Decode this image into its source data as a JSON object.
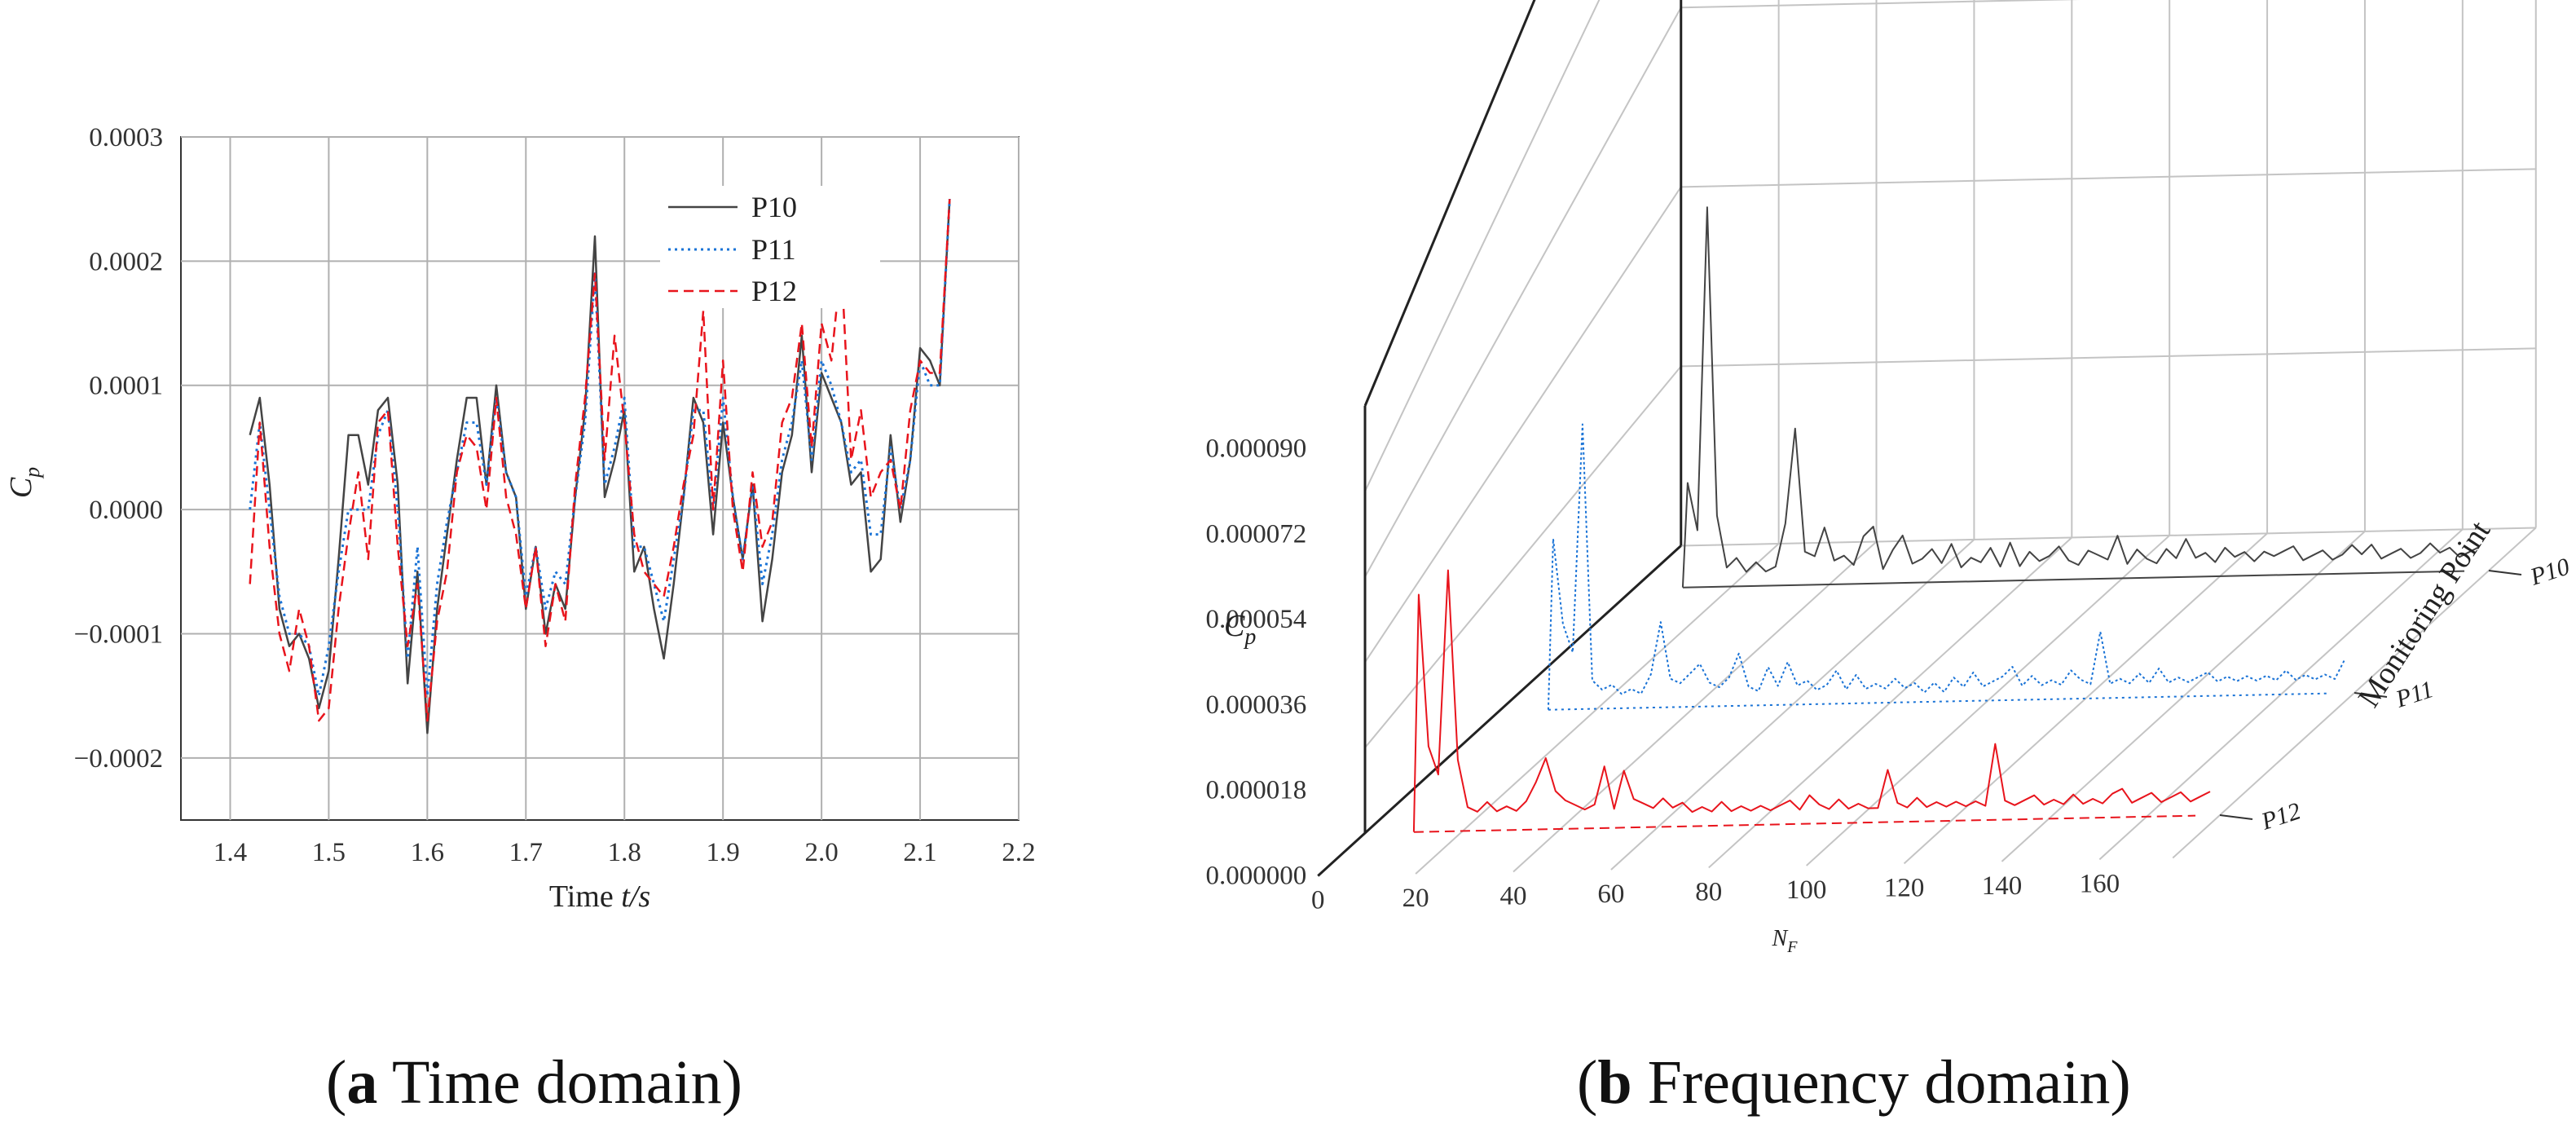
{
  "captions": {
    "a_letter": "a",
    "a_text": " Time domain",
    "b_letter": "b",
    "b_text": " Frequency domain"
  },
  "colors": {
    "P10": "#444444",
    "P11": "#1a73d6",
    "P12": "#e8141c"
  },
  "chart_data": [
    {
      "type": "line",
      "xlabel_prefix": "Time ",
      "xlabel_var": "t/s",
      "ylabel_main": "C",
      "ylabel_sub": "p",
      "xlim": [
        1.35,
        2.2
      ],
      "ylim": [
        -0.00025,
        0.0003
      ],
      "x_ticks": [
        "1.4",
        "1.5",
        "1.6",
        "1.7",
        "1.8",
        "1.9",
        "2.0",
        "2.1",
        "2.2"
      ],
      "x_tick_values": [
        1.4,
        1.5,
        1.6,
        1.7,
        1.8,
        1.9,
        2.0,
        2.1,
        2.2
      ],
      "y_ticks": [
        "0.0003",
        "0.0002",
        "0.0001",
        "0.0000",
        "−0.0001",
        "−0.0002"
      ],
      "y_tick_values": [
        0.0003,
        0.0002,
        0.0001,
        0.0,
        -0.0001,
        -0.0002
      ],
      "grid": true,
      "legend_position": "top-right",
      "series": [
        {
          "name": "P10",
          "style": "solid",
          "x": [
            1.42,
            1.43,
            1.44,
            1.45,
            1.46,
            1.47,
            1.48,
            1.49,
            1.5,
            1.51,
            1.52,
            1.53,
            1.54,
            1.55,
            1.56,
            1.57,
            1.58,
            1.59,
            1.6,
            1.61,
            1.62,
            1.63,
            1.64,
            1.65,
            1.66,
            1.67,
            1.68,
            1.69,
            1.7,
            1.71,
            1.72,
            1.73,
            1.74,
            1.75,
            1.76,
            1.77,
            1.78,
            1.79,
            1.8,
            1.81,
            1.82,
            1.83,
            1.84,
            1.85,
            1.86,
            1.87,
            1.88,
            1.89,
            1.9,
            1.91,
            1.92,
            1.93,
            1.94,
            1.95,
            1.96,
            1.97,
            1.98,
            1.99,
            2.0,
            2.01,
            2.02,
            2.03,
            2.04,
            2.05,
            2.06,
            2.07,
            2.08,
            2.09,
            2.1,
            2.11,
            2.12,
            2.13
          ],
          "y": [
            6e-05,
            9e-05,
            2e-05,
            -8e-05,
            -0.00011,
            -0.0001,
            -0.00012,
            -0.00016,
            -0.00013,
            -4e-05,
            6e-05,
            6e-05,
            2e-05,
            8e-05,
            9e-05,
            2e-05,
            -0.00014,
            -5e-05,
            -0.00018,
            -8e-05,
            -2e-05,
            4e-05,
            9e-05,
            9e-05,
            2e-05,
            0.0001,
            3e-05,
            1e-05,
            -8e-05,
            -3e-05,
            -0.0001,
            -6e-05,
            -8e-05,
            1e-05,
            8e-05,
            0.00022,
            1e-05,
            4e-05,
            8e-05,
            -5e-05,
            -3e-05,
            -8e-05,
            -0.00012,
            -6e-05,
            1e-05,
            9e-05,
            7e-05,
            -2e-05,
            7e-05,
            1e-05,
            -4e-05,
            2e-05,
            -9e-05,
            -4e-05,
            3e-05,
            6e-05,
            0.00014,
            3e-05,
            0.00011,
            9e-05,
            7e-05,
            2e-05,
            3e-05,
            -5e-05,
            -4e-05,
            6e-05,
            -1e-05,
            4e-05,
            0.00013,
            0.00012,
            0.0001,
            0.00025
          ]
        },
        {
          "name": "P11",
          "style": "dotted",
          "x": [
            1.42,
            1.43,
            1.44,
            1.45,
            1.46,
            1.47,
            1.48,
            1.49,
            1.5,
            1.51,
            1.52,
            1.53,
            1.54,
            1.55,
            1.56,
            1.57,
            1.58,
            1.59,
            1.6,
            1.61,
            1.62,
            1.63,
            1.64,
            1.65,
            1.66,
            1.67,
            1.68,
            1.69,
            1.7,
            1.71,
            1.72,
            1.73,
            1.74,
            1.75,
            1.76,
            1.77,
            1.78,
            1.79,
            1.8,
            1.81,
            1.82,
            1.83,
            1.84,
            1.85,
            1.86,
            1.87,
            1.88,
            1.89,
            1.9,
            1.91,
            1.92,
            1.93,
            1.94,
            1.95,
            1.96,
            1.97,
            1.98,
            1.99,
            2.0,
            2.01,
            2.02,
            2.03,
            2.04,
            2.05,
            2.06,
            2.07,
            2.08,
            2.09,
            2.1,
            2.11,
            2.12,
            2.13
          ],
          "y": [
            0.0,
            7e-05,
            0.0,
            -7e-05,
            -0.0001,
            -0.0001,
            -0.00011,
            -0.00015,
            -0.00011,
            -5e-05,
            0.0,
            0.0,
            0.0,
            6e-05,
            8e-05,
            0.0,
            -0.00012,
            -3e-05,
            -0.00015,
            -6e-05,
            -1e-05,
            3e-05,
            7e-05,
            7e-05,
            2e-05,
            9e-05,
            3e-05,
            1e-05,
            -7e-05,
            -3e-05,
            -8e-05,
            -5e-05,
            -6e-05,
            1e-05,
            7e-05,
            0.00019,
            2e-05,
            5e-05,
            9e-05,
            -3e-05,
            -3e-05,
            -6e-05,
            -9e-05,
            -4e-05,
            1e-05,
            8e-05,
            8e-05,
            0.0,
            9e-05,
            1e-05,
            -4e-05,
            2e-05,
            -6e-05,
            -2e-05,
            4e-05,
            7e-05,
            0.00012,
            4e-05,
            0.00012,
            0.0001,
            7e-05,
            3e-05,
            4e-05,
            -2e-05,
            -2e-05,
            5e-05,
            0.0,
            4e-05,
            0.00012,
            0.0001,
            0.0001,
            0.00025
          ]
        },
        {
          "name": "P12",
          "style": "dashed",
          "x": [
            1.42,
            1.43,
            1.44,
            1.45,
            1.46,
            1.47,
            1.48,
            1.49,
            1.5,
            1.51,
            1.52,
            1.53,
            1.54,
            1.55,
            1.56,
            1.57,
            1.58,
            1.59,
            1.6,
            1.61,
            1.62,
            1.63,
            1.64,
            1.65,
            1.66,
            1.67,
            1.68,
            1.69,
            1.7,
            1.71,
            1.72,
            1.73,
            1.74,
            1.75,
            1.76,
            1.77,
            1.78,
            1.79,
            1.8,
            1.81,
            1.82,
            1.83,
            1.84,
            1.85,
            1.86,
            1.87,
            1.88,
            1.89,
            1.9,
            1.91,
            1.92,
            1.93,
            1.94,
            1.95,
            1.96,
            1.97,
            1.98,
            1.99,
            2.0,
            2.01,
            2.02,
            2.03,
            2.04,
            2.05,
            2.06,
            2.07,
            2.08,
            2.09,
            2.1,
            2.11,
            2.12,
            2.13
          ],
          "y": [
            -6e-05,
            7e-05,
            -3e-05,
            -0.0001,
            -0.00013,
            -8e-05,
            -0.00011,
            -0.00017,
            -0.00016,
            -8e-05,
            -2e-05,
            3e-05,
            -4e-05,
            7e-05,
            8e-05,
            -3e-05,
            -0.00011,
            -6e-05,
            -0.00017,
            -9e-05,
            -5e-05,
            3e-05,
            6e-05,
            5e-05,
            0.0,
            9e-05,
            1e-05,
            -2e-05,
            -8e-05,
            -3e-05,
            -0.00011,
            -6e-05,
            -9e-05,
            2e-05,
            9e-05,
            0.00019,
            4e-05,
            0.00014,
            7e-05,
            -2e-05,
            -5e-05,
            -6e-05,
            -7e-05,
            -3e-05,
            2e-05,
            6e-05,
            0.00016,
            0.0,
            0.00012,
            0.0,
            -5e-05,
            3e-05,
            -3e-05,
            -1e-05,
            7e-05,
            9e-05,
            0.00015,
            5e-05,
            0.00015,
            0.00012,
            0.0002,
            4e-05,
            8e-05,
            1e-05,
            3e-05,
            4e-05,
            0.0,
            8e-05,
            0.00012,
            0.00011,
            0.00011,
            0.00025
          ]
        }
      ]
    },
    {
      "type": "line",
      "xlabel_main": "N",
      "xlabel_sub": "F",
      "ylabel_main": "C",
      "ylabel_sub": "p",
      "zlabel": "Monitoring Point",
      "xlim": [
        0,
        175
      ],
      "ylim": [
        0,
        9e-05
      ],
      "x_ticks": [
        "0",
        "20",
        "40",
        "60",
        "80",
        "100",
        "120",
        "140",
        "160"
      ],
      "x_tick_values": [
        0,
        20,
        40,
        60,
        80,
        100,
        120,
        140,
        160
      ],
      "y_ticks": [
        "0.000090",
        "0.000072",
        "0.000054",
        "0.000036",
        "0.000018",
        "0.000000"
      ],
      "y_tick_values": [
        9e-05,
        7.2e-05,
        5.4e-05,
        3.6e-05,
        1.8e-05,
        0.0
      ],
      "categories": [
        "P10",
        "P11",
        "P12"
      ],
      "grid": true,
      "series": [
        {
          "name": "P10",
          "style": "solid",
          "x": [
            10,
            11,
            13,
            15,
            17,
            19,
            21,
            23,
            25,
            27,
            29,
            31,
            33,
            35,
            37,
            39,
            41,
            43,
            45,
            47,
            49,
            51,
            53,
            55,
            57,
            59,
            61,
            63,
            65,
            67,
            69,
            71,
            73,
            75,
            77,
            79,
            81,
            83,
            85,
            87,
            89,
            91,
            93,
            95,
            97,
            99,
            101,
            103,
            105,
            107,
            109,
            111,
            113,
            115,
            117,
            119,
            121,
            123,
            125,
            127,
            129,
            131,
            133,
            135,
            137,
            139,
            141,
            143,
            145,
            147,
            149,
            151,
            153,
            155,
            157,
            159,
            161,
            163,
            165,
            167,
            169,
            171,
            173
          ],
          "y": [
            0.0,
            2.2e-05,
            1.2e-05,
            8e-05,
            1.5e-05,
            4e-06,
            6e-06,
            3e-06,
            5e-06,
            3e-06,
            4e-06,
            1.3e-05,
            3.3e-05,
            7e-06,
            6e-06,
            1.2e-05,
            5e-06,
            6e-06,
            4e-06,
            1e-05,
            1.2e-05,
            3e-06,
            7e-06,
            1e-05,
            4e-06,
            5e-06,
            7e-06,
            4e-06,
            8e-06,
            3e-06,
            5e-06,
            4e-06,
            7e-06,
            3e-06,
            8e-06,
            3e-06,
            6e-06,
            4e-06,
            5e-06,
            7e-06,
            4e-06,
            3e-06,
            6e-06,
            5e-06,
            4e-06,
            9e-06,
            3e-06,
            6e-06,
            4e-06,
            3e-06,
            6e-06,
            4e-06,
            8e-06,
            4e-06,
            5e-06,
            3e-06,
            6e-06,
            4e-06,
            5e-06,
            3e-06,
            5e-06,
            4e-06,
            5e-06,
            6e-06,
            3e-06,
            4e-06,
            5e-06,
            3e-06,
            4e-06,
            6e-06,
            4e-06,
            6e-06,
            3e-06,
            4e-06,
            5e-06,
            3e-06,
            4e-06,
            6e-06,
            4e-06,
            5e-06,
            3e-06,
            4e-06,
            5e-06
          ]
        },
        {
          "name": "P11",
          "style": "dotted",
          "x": [
            10,
            11,
            13,
            15,
            17,
            19,
            21,
            23,
            25,
            27,
            29,
            31,
            33,
            35,
            37,
            39,
            41,
            43,
            45,
            47,
            49,
            51,
            53,
            55,
            57,
            59,
            61,
            63,
            65,
            67,
            69,
            71,
            73,
            75,
            77,
            79,
            81,
            83,
            85,
            87,
            89,
            91,
            93,
            95,
            97,
            99,
            101,
            103,
            105,
            107,
            109,
            111,
            113,
            115,
            117,
            119,
            121,
            123,
            125,
            127,
            129,
            131,
            133,
            135,
            137,
            139,
            141,
            143,
            145,
            147,
            149,
            151,
            153,
            155,
            157,
            159,
            161,
            163,
            165,
            167,
            169,
            171,
            173
          ],
          "y": [
            0.0,
            3.6e-05,
            1.8e-05,
            1.2e-05,
            6e-05,
            6e-06,
            4e-06,
            5e-06,
            3e-06,
            4e-06,
            3e-06,
            7e-06,
            1.8e-05,
            6e-06,
            5e-06,
            7e-06,
            9e-06,
            5e-06,
            4e-06,
            6e-06,
            1.1e-05,
            4e-06,
            3e-06,
            8e-06,
            4e-06,
            9e-06,
            4e-06,
            5e-06,
            3e-06,
            4e-06,
            7e-06,
            3e-06,
            6e-06,
            3e-06,
            4e-06,
            3e-06,
            5e-06,
            3e-06,
            4e-06,
            2e-06,
            4e-06,
            2e-06,
            5e-06,
            3e-06,
            6e-06,
            3e-06,
            4e-06,
            5e-06,
            7e-06,
            3e-06,
            5e-06,
            3e-06,
            4e-06,
            3e-06,
            6e-06,
            4e-06,
            3e-06,
            1.4e-05,
            3e-06,
            4e-06,
            3e-06,
            5e-06,
            3e-06,
            6e-06,
            3e-06,
            4e-06,
            3e-06,
            4e-06,
            5e-06,
            3e-06,
            4e-06,
            3e-06,
            4e-06,
            3e-06,
            4e-06,
            3e-06,
            5e-06,
            3e-06,
            4e-06,
            3e-06,
            4e-06,
            3e-06,
            7e-06
          ]
        },
        {
          "name": "P12",
          "style": "dashed",
          "x": [
            10,
            11,
            13,
            15,
            17,
            19,
            21,
            23,
            25,
            27,
            29,
            31,
            33,
            35,
            37,
            39,
            41,
            43,
            45,
            47,
            49,
            51,
            53,
            55,
            57,
            59,
            61,
            63,
            65,
            67,
            69,
            71,
            73,
            75,
            77,
            79,
            81,
            83,
            85,
            87,
            89,
            91,
            93,
            95,
            97,
            99,
            101,
            103,
            105,
            107,
            109,
            111,
            113,
            115,
            117,
            119,
            121,
            123,
            125,
            127,
            129,
            131,
            133,
            135,
            137,
            139,
            141,
            143,
            145,
            147,
            149,
            151,
            153,
            155,
            157,
            159,
            161,
            163,
            165,
            167,
            169,
            171,
            173
          ],
          "y": [
            0.0,
            5e-05,
            1.8e-05,
            1.2e-05,
            5.5e-05,
            1.5e-05,
            5e-06,
            4e-06,
            6e-06,
            4e-06,
            5e-06,
            4e-06,
            6e-06,
            1e-05,
            1.5e-05,
            8e-06,
            6e-06,
            5e-06,
            4e-06,
            5e-06,
            1.3e-05,
            4e-06,
            1.2e-05,
            6e-06,
            5e-06,
            4e-06,
            6e-06,
            4e-06,
            5e-06,
            3e-06,
            4e-06,
            3e-06,
            5e-06,
            3e-06,
            4e-06,
            3e-06,
            4e-06,
            3e-06,
            4e-06,
            5e-06,
            3e-06,
            6e-06,
            4e-06,
            3e-06,
            5e-06,
            3e-06,
            4e-06,
            3e-06,
            3e-06,
            1.1e-05,
            4e-06,
            3e-06,
            5e-06,
            3e-06,
            4e-06,
            3e-06,
            4e-06,
            3e-06,
            4e-06,
            3e-06,
            1.6e-05,
            4e-06,
            3e-06,
            4e-06,
            5e-06,
            3e-06,
            4e-06,
            3e-06,
            5e-06,
            3e-06,
            4e-06,
            3e-06,
            5e-06,
            6e-06,
            3e-06,
            4e-06,
            5e-06,
            3e-06,
            4e-06,
            5e-06,
            3e-06,
            4e-06,
            5e-06
          ]
        }
      ]
    }
  ]
}
